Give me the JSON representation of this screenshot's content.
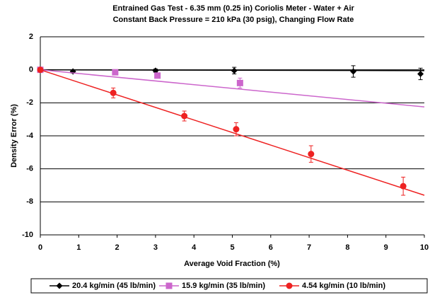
{
  "chart_data": {
    "type": "line",
    "title": "Entrained Gas Test - 6.35 mm (0.25 in) Coriolis Meter - Water + Air",
    "subtitle": "Constant Back Pressure = 210 kPa (30 psig), Changing Flow Rate",
    "x_label": "Average Void Fraction (%)",
    "y_label": "Density Error (%)",
    "xlim": [
      0,
      10
    ],
    "xticks": [
      0,
      1,
      2,
      3,
      4,
      5,
      6,
      7,
      8,
      9,
      10
    ],
    "ylim": [
      -10,
      2
    ],
    "yticks": [
      -10,
      -8,
      -6,
      -4,
      -2,
      0,
      2
    ],
    "grid": true,
    "legend": "bottom",
    "series": [
      {
        "name": "20.4 kg/min (45 lb/min)",
        "color": "#000000",
        "marker": "diamond",
        "x": [
          0,
          0.85,
          3,
          5.05,
          8.15,
          9.9
        ],
        "values": [
          0,
          -0.1,
          -0.05,
          -0.05,
          -0.1,
          -0.25
        ],
        "errors": [
          0.1,
          0.1,
          0.1,
          0.2,
          0.35,
          0.35
        ],
        "trend_x": [
          0,
          10
        ],
        "trend_values": [
          0,
          -0.05
        ]
      },
      {
        "name": "15.9 kg/min (35 lb/min)",
        "color": "#cc66cc",
        "marker": "square",
        "x": [
          0,
          1.95,
          3.05,
          5.2
        ],
        "values": [
          0,
          -0.15,
          -0.35,
          -0.8
        ],
        "errors": [
          0.1,
          0.1,
          0.15,
          0.3
        ],
        "trend_x": [
          0,
          10
        ],
        "trend_values": [
          0,
          -2.25
        ]
      },
      {
        "name": "4.54 kg/min (10 lb/min)",
        "color": "#ee2222",
        "marker": "circle",
        "x": [
          0,
          1.9,
          3.75,
          5.1,
          7.05,
          9.45
        ],
        "values": [
          0,
          -1.4,
          -2.8,
          -3.6,
          -5.1,
          -7.05
        ],
        "errors": [
          0.1,
          0.3,
          0.3,
          0.4,
          0.5,
          0.55
        ],
        "trend_x": [
          0,
          10
        ],
        "trend_values": [
          0,
          -7.6
        ]
      }
    ]
  }
}
